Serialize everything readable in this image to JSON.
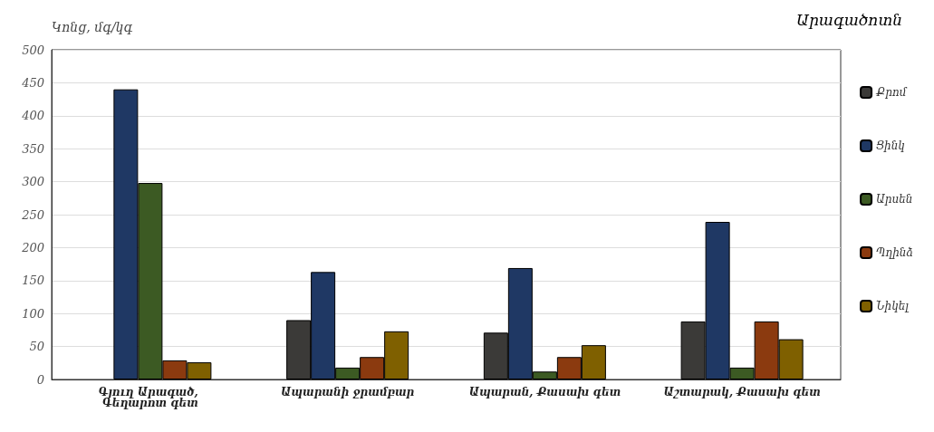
{
  "chart_data": {
    "type": "bar",
    "title": "Արագածոտն",
    "ylabel": "Կոնց, մգ/կգ",
    "categories": [
      "Գյուղ Արագած, Գեղարոտ գետ",
      "Ապարանի ջրամբար",
      "Ապարան, Քասախ գետ",
      "Աշտարակ, Քասախ գետ"
    ],
    "series": [
      {
        "name": "Քրոմ",
        "color": "#3b3a38",
        "values": [
          null,
          90,
          71,
          88
        ]
      },
      {
        "name": "Ցինկ",
        "color": "#1f3864",
        "values": [
          440,
          163,
          169,
          239
        ]
      },
      {
        "name": "Արսեն",
        "color": "#3c5a23",
        "values": [
          298,
          18,
          12,
          18
        ]
      },
      {
        "name": "Պղինձ",
        "color": "#8b3a0f",
        "values": [
          29,
          34,
          34,
          88
        ]
      },
      {
        "name": "Նիկել",
        "color": "#7f6000",
        "values": [
          26,
          73,
          52,
          61
        ]
      }
    ],
    "ylim": [
      0,
      500
    ],
    "yticks": [
      0,
      50,
      100,
      150,
      200,
      250,
      300,
      350,
      400,
      450,
      500
    ],
    "grid": "y",
    "legend": "right"
  }
}
